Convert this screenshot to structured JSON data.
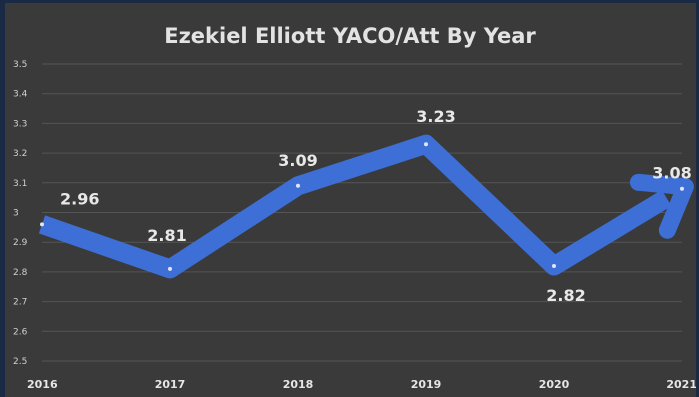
{
  "chart_data": {
    "type": "line",
    "title": "Ezekiel Elliott YACO/Att By Year",
    "xlabel": "",
    "ylabel": "",
    "categories": [
      "2016",
      "2017",
      "2018",
      "2019",
      "2020",
      "2021"
    ],
    "series": [
      {
        "values": [
          2.96,
          2.81,
          3.09,
          3.23,
          2.82,
          3.08
        ]
      }
    ],
    "data_labels": [
      "2.96",
      "2.81",
      "3.09",
      "3.23",
      "2.82",
      "3.08"
    ],
    "ylim": [
      2.5,
      3.5
    ],
    "yticks": [
      "2.5",
      "2.6",
      "2.7",
      "2.8",
      "2.9",
      "3",
      "3.1",
      "3.2",
      "3.3",
      "3.4",
      "3.5"
    ],
    "grid": true,
    "legend": "none",
    "end_marker": "arrow",
    "colors": {
      "line": "#3d6fd6",
      "background": "#3a3a3a",
      "grid": "#555555",
      "text": "#e3e3e3"
    }
  }
}
